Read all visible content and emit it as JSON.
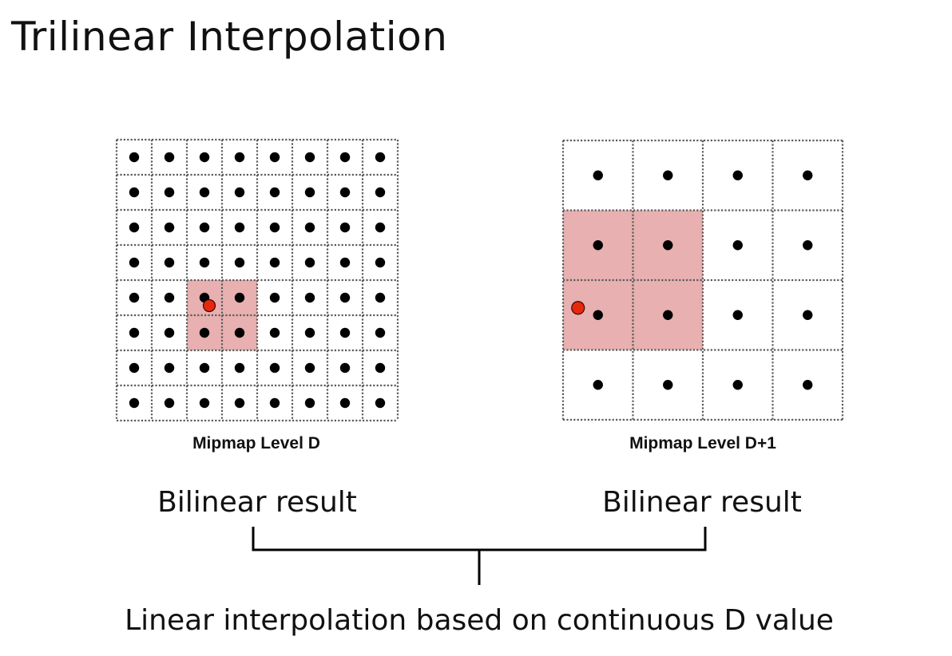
{
  "title": "Trilinear Interpolation",
  "mipmap_levels": [
    {
      "label": "Mipmap Level D",
      "grid_cells": 8,
      "highlighted_cells": [
        [
          4,
          2
        ],
        [
          4,
          3
        ],
        [
          5,
          2
        ],
        [
          5,
          3
        ]
      ],
      "sample_point_cell": [
        4,
        2
      ]
    },
    {
      "label": "Mipmap Level D+1",
      "grid_cells": 4,
      "highlighted_cells": [
        [
          1,
          0
        ],
        [
          1,
          1
        ],
        [
          2,
          0
        ],
        [
          2,
          1
        ]
      ],
      "sample_point_cell": [
        2,
        0
      ]
    }
  ],
  "left_result": "Bilinear result",
  "right_result": "Bilinear result",
  "bottom_label": "Linear interpolation based on continuous D value",
  "colors": {
    "highlight": "#e8b0b0",
    "sample_point": "#e8270f",
    "texel": "#000000",
    "grid_line": "#5a5a5a"
  }
}
